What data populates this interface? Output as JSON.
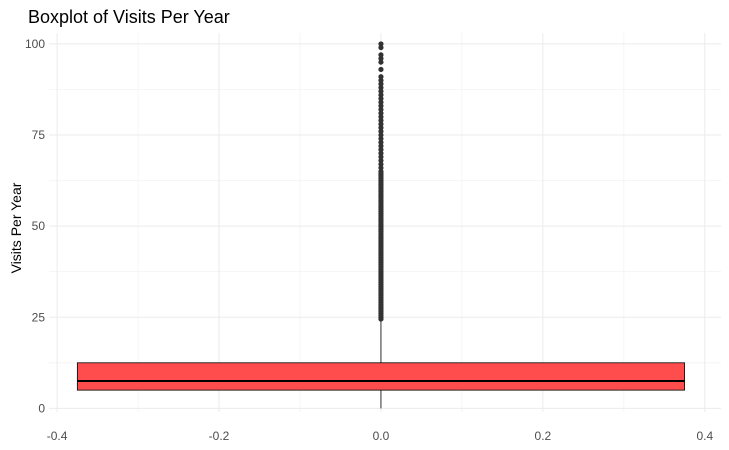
{
  "chart_data": {
    "type": "boxplot",
    "title": "Boxplot of Visits Per Year",
    "xlabel": "",
    "ylabel": "Visits Per Year",
    "xlim": [
      -0.41,
      0.42
    ],
    "ylim": [
      -1,
      103
    ],
    "x_ticks": [
      -0.4,
      -0.2,
      0.0,
      0.2,
      0.4
    ],
    "x_tick_labels": [
      "-0.4",
      "-0.2",
      "0.0",
      "0.2",
      "0.4"
    ],
    "y_ticks": [
      0,
      25,
      50,
      75,
      100
    ],
    "y_tick_labels": [
      "0",
      "25",
      "50",
      "75",
      "100"
    ],
    "grid": true,
    "box": {
      "x_center": 0.0,
      "x_left": -0.375,
      "x_right": 0.375,
      "min": 0,
      "q1": 5,
      "median": 7.5,
      "q3": 12.5,
      "whisker_high": 24,
      "fill_color": "#ff4d4d",
      "border_color": "#000000"
    },
    "outliers": [
      24.5,
      25,
      25.5,
      26,
      26.5,
      27,
      27.5,
      28,
      28.5,
      29,
      29.5,
      30,
      30.5,
      31,
      31.5,
      32,
      32.5,
      33,
      33.5,
      34,
      34.5,
      35,
      35.5,
      36,
      36.5,
      37,
      37.5,
      38,
      38.5,
      39,
      39.5,
      40,
      40.5,
      41,
      41.5,
      42,
      42.5,
      43,
      43.5,
      44,
      44.5,
      45,
      45.5,
      46,
      46.5,
      47,
      47.5,
      48,
      48.5,
      49,
      49.5,
      50,
      50.5,
      51,
      51.5,
      52,
      52.5,
      53,
      53.5,
      54,
      54.5,
      55,
      55.5,
      56,
      56.5,
      57,
      57.5,
      58,
      58.5,
      59,
      59.5,
      60,
      60.5,
      61,
      61.5,
      62,
      62.5,
      63,
      63.5,
      64,
      64.5,
      65,
      66,
      67,
      68,
      69,
      70,
      71,
      72,
      73,
      74,
      75,
      76,
      77,
      78,
      79,
      80,
      81,
      82,
      83,
      84,
      85,
      86,
      87,
      88,
      89,
      90,
      91,
      93,
      95,
      96,
      97,
      99,
      100
    ],
    "outlier_color": "#333333"
  }
}
